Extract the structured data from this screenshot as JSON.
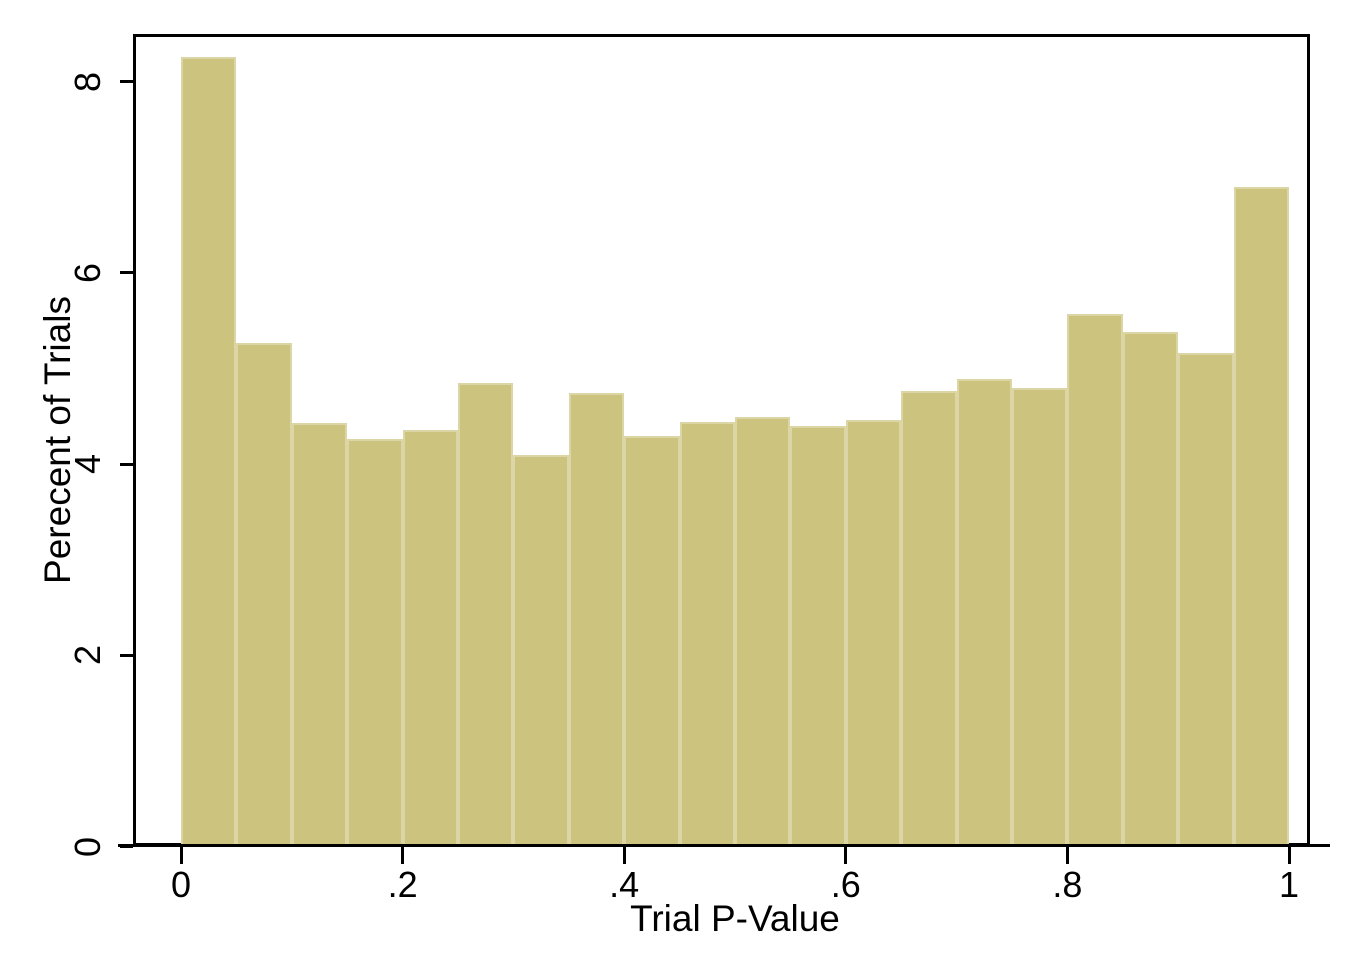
{
  "figure": {
    "background": "#FFFFFF"
  },
  "chart_data": {
    "type": "bar",
    "subtype": "histogram",
    "title": "",
    "xlabel": "Trial P-Value",
    "ylabel": "Perecent of Trials",
    "xlim": [
      -0.043,
      1.019
    ],
    "ylim": [
      0,
      8.5
    ],
    "grid": false,
    "legend": null,
    "x_ticks": {
      "labels": [
        "0",
        ".2",
        ".4",
        ".6",
        ".8",
        "1"
      ],
      "values": [
        0,
        0.2,
        0.4,
        0.6,
        0.8,
        1
      ]
    },
    "y_ticks": {
      "labels": [
        "0",
        "2",
        "4",
        "6",
        "8"
      ],
      "values": [
        0,
        2,
        4,
        6,
        8
      ]
    },
    "bin_width": 0.05,
    "bins": [
      {
        "from": 0.0,
        "to": 0.05,
        "percent": 8.26
      },
      {
        "from": 0.05,
        "to": 0.1,
        "percent": 5.27
      },
      {
        "from": 0.1,
        "to": 0.15,
        "percent": 4.43
      },
      {
        "from": 0.15,
        "to": 0.2,
        "percent": 4.26
      },
      {
        "from": 0.2,
        "to": 0.25,
        "percent": 4.36
      },
      {
        "from": 0.25,
        "to": 0.3,
        "percent": 4.85
      },
      {
        "from": 0.3,
        "to": 0.35,
        "percent": 4.1
      },
      {
        "from": 0.35,
        "to": 0.4,
        "percent": 4.74
      },
      {
        "from": 0.4,
        "to": 0.45,
        "percent": 4.3
      },
      {
        "from": 0.45,
        "to": 0.5,
        "percent": 4.44
      },
      {
        "from": 0.5,
        "to": 0.55,
        "percent": 4.49
      },
      {
        "from": 0.55,
        "to": 0.6,
        "percent": 4.4
      },
      {
        "from": 0.6,
        "to": 0.65,
        "percent": 4.46
      },
      {
        "from": 0.65,
        "to": 0.7,
        "percent": 4.77
      },
      {
        "from": 0.7,
        "to": 0.75,
        "percent": 4.89
      },
      {
        "from": 0.75,
        "to": 0.8,
        "percent": 4.8
      },
      {
        "from": 0.8,
        "to": 0.85,
        "percent": 5.57
      },
      {
        "from": 0.85,
        "to": 0.9,
        "percent": 5.38
      },
      {
        "from": 0.9,
        "to": 0.95,
        "percent": 5.16
      },
      {
        "from": 0.95,
        "to": 1.0,
        "percent": 6.9
      }
    ],
    "colors": {
      "bar_fill": "#CBC37E",
      "bar_border": "#DCD6A6",
      "axis": "#000000",
      "text": "#000000",
      "background": "#FFFFFF"
    }
  }
}
